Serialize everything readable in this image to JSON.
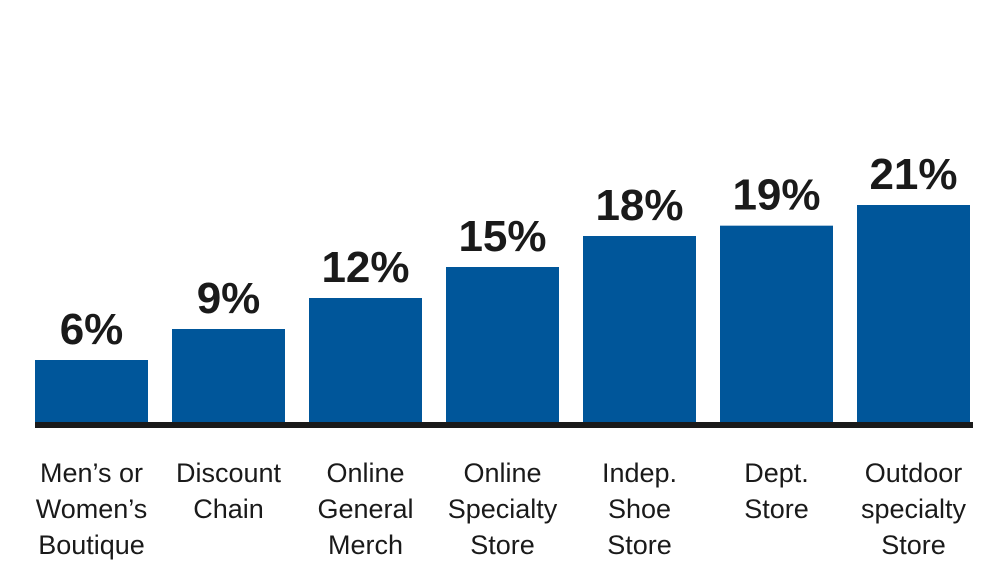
{
  "chart_data": {
    "type": "bar",
    "categories": [
      "Men’s or Women’s Boutique",
      "Discount Chain",
      "Online General Merch",
      "Online Specialty Store",
      "Indep. Shoe Store",
      "Dept. Store",
      "Outdoor specialty Store"
    ],
    "category_lines": [
      [
        "Men’s or",
        "Women’s",
        "Boutique"
      ],
      [
        "Discount",
        "Chain"
      ],
      [
        "Online",
        "General",
        "Merch"
      ],
      [
        "Online",
        "Specialty",
        "Store"
      ],
      [
        "Indep.",
        "Shoe",
        "Store"
      ],
      [
        "Dept.",
        "Store"
      ],
      [
        "Outdoor",
        "specialty",
        "Store"
      ]
    ],
    "values": [
      6,
      9,
      12,
      15,
      18,
      19,
      21
    ],
    "value_labels": [
      "6%",
      "9%",
      "12%",
      "15%",
      "18%",
      "19%",
      "21%"
    ],
    "title": "",
    "xlabel": "",
    "ylabel": "",
    "ylim": [
      0,
      21
    ],
    "grid": false,
    "legend": "none",
    "colors": {
      "bar": "#00569a",
      "baseline": "#1a1a1a",
      "text": "#1a1a1a"
    }
  }
}
